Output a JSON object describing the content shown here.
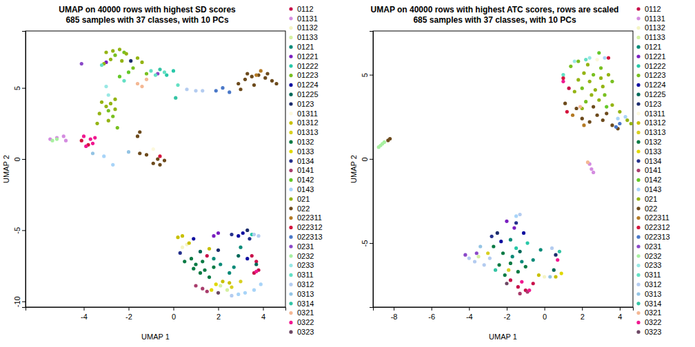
{
  "chart_data": [
    {
      "type": "scatter",
      "title": "UMAP on 40000 rows with highest SD scores",
      "subtitle": "685 samples with 37 classes, with 10 PCs",
      "x_label": "UMAP 1",
      "y_label": "UMAP 2",
      "xlim": [
        -6.6,
        5.0
      ],
      "ylim": [
        -10.4,
        9.0
      ],
      "xticks": [
        -4,
        -2,
        0,
        2,
        4
      ],
      "yticks": [
        -10,
        -5,
        0,
        5
      ],
      "legend": "right",
      "series": [
        {
          "name": "0112",
          "color": "#c8104a",
          "x": [
            3.7,
            3.8,
            3.6,
            3.5,
            1.5
          ],
          "y": [
            -7.2,
            -7.8,
            -8.0,
            -6.8,
            -6.8
          ]
        },
        {
          "name": "01131",
          "color": "#d48ce0",
          "x": [
            -5.5,
            -5.2,
            -4.8,
            -4.9
          ],
          "y": [
            1.4,
            1.5,
            1.3,
            1.6
          ]
        },
        {
          "name": "01132",
          "color": "#f4f4c4",
          "x": [
            0.4,
            0.6
          ],
          "y": [
            -6.2,
            -6.0
          ]
        },
        {
          "name": "01133",
          "color": "#d4f0a0",
          "x": [
            2.1,
            2.4
          ],
          "y": [
            -8.9,
            -9.2
          ]
        },
        {
          "name": "0121",
          "color": "#0a8a78",
          "x": [
            2.1,
            2.7,
            3.0,
            2.5,
            1.8
          ],
          "y": [
            -7.4,
            -7.6,
            -6.2,
            -8.0,
            -7.0
          ]
        },
        {
          "name": "01221",
          "color": "#7a1fc0",
          "x": [
            2.0,
            1.8,
            -3.0
          ],
          "y": [
            -5.2,
            -5.4,
            6.8
          ]
        },
        {
          "name": "01222",
          "color": "#28c8a8",
          "x": [
            0.0,
            -0.3,
            3.5
          ],
          "y": [
            6.2,
            5.9,
            -5.3
          ]
        },
        {
          "name": "01223",
          "color": "#78c020",
          "x": [
            -2.6,
            -2.2,
            -1.8,
            -2.9,
            -2.7,
            -2.5,
            -1.2
          ],
          "y": [
            7.3,
            7.5,
            6.4,
            3.4,
            3.0,
            2.2,
            6.0
          ]
        },
        {
          "name": "01224",
          "color": "#1010a0",
          "x": [
            2.9,
            3.1,
            0.9,
            3.3
          ],
          "y": [
            -5.4,
            -5.2,
            -5.6,
            -7.0
          ]
        },
        {
          "name": "01225",
          "color": "#006858",
          "x": [
            3.7,
            1.2,
            2.9
          ],
          "y": [
            -7.4,
            -6.5,
            -6.8
          ]
        },
        {
          "name": "0123",
          "color": "#1c2c6c",
          "x": [
            3.3,
            2.0,
            -1.9
          ],
          "y": [
            -5.0,
            -6.4,
            6.9
          ]
        },
        {
          "name": "01311",
          "color": "#fcf8dc",
          "x": [
            -0.9
          ],
          "y": [
            0.7
          ]
        },
        {
          "name": "01312",
          "color": "#c8c000",
          "x": [
            0.2,
            0.4,
            0.7,
            2.2,
            2.5,
            1.6
          ],
          "y": [
            -5.5,
            -5.4,
            -5.9,
            -8.6,
            -8.7,
            -6.3
          ]
        },
        {
          "name": "01313",
          "color": "#d8d020",
          "x": [
            3.0,
            2.6
          ],
          "y": [
            -8.6,
            -9.0
          ]
        },
        {
          "name": "0132",
          "color": "#0a7a44",
          "x": [
            0.8,
            1.0,
            1.2,
            1.4,
            1.6,
            0.9,
            1.8,
            0.5,
            1.3
          ],
          "y": [
            -7.0,
            -7.4,
            -8.0,
            -7.8,
            -8.3,
            -7.7,
            -7.6,
            -7.2,
            -7.2
          ]
        },
        {
          "name": "0133",
          "color": "#e0d800",
          "x": [
            1.9,
            1.7
          ],
          "y": [
            -8.8,
            -9.2
          ]
        },
        {
          "name": "0134",
          "color": "#24308c",
          "x": [
            3.4,
            2.6,
            0.3
          ],
          "y": [
            -5.6,
            -5.3,
            -6.6
          ]
        },
        {
          "name": "0141",
          "color": "#a83c6c",
          "x": [
            1.0,
            1.3,
            1.5
          ],
          "y": [
            -8.9,
            -9.1,
            -9.3
          ]
        },
        {
          "name": "0142",
          "color": "#64c828",
          "x": [
            -2.4,
            -2.0
          ],
          "y": [
            5.8,
            6.1
          ]
        },
        {
          "name": "0143",
          "color": "#a8d4f8",
          "x": [
            3.6,
            3.9,
            2.9,
            3.2,
            -2.7,
            -3.1
          ],
          "y": [
            -9.2,
            -8.8,
            -9.5,
            -9.4,
            -0.4,
            0.2
          ]
        },
        {
          "name": "021",
          "color": "#94b414",
          "x": [
            -3.0,
            -2.7,
            -2.4,
            -2.1,
            -1.6,
            -1.4,
            -2.8,
            -2.3,
            -3.1,
            -3.2,
            -3.0,
            -2.8,
            -2.6,
            -3.3,
            -2.9,
            -2.6,
            -3.4
          ],
          "y": [
            7.5,
            7.6,
            7.7,
            7.4,
            7.1,
            6.8,
            7.0,
            6.9,
            6.7,
            4.0,
            3.7,
            3.9,
            3.5,
            3.2,
            2.7,
            4.2,
            2.5
          ]
        },
        {
          "name": "022",
          "color": "#6c4a1c",
          "x": [
            2.9,
            3.2,
            3.5,
            3.8,
            4.1,
            4.4,
            4.6,
            3.6,
            3.0,
            4.2,
            3.3,
            -1.5,
            -1.6,
            -0.6,
            -0.4,
            -0.7,
            -1.2,
            -1.5,
            -0.9
          ],
          "y": [
            5.3,
            5.6,
            5.8,
            5.9,
            5.7,
            5.5,
            5.3,
            5.2,
            4.9,
            6.0,
            6.0,
            1.9,
            1.6,
            -0.4,
            -0.1,
            0.0,
            0.3,
            0.4,
            -0.3
          ]
        },
        {
          "name": "022311",
          "color": "#b47a24",
          "x": [
            3.7,
            3.9
          ],
          "y": [
            5.9,
            6.2
          ]
        },
        {
          "name": "022312",
          "color": "#d4143c",
          "x": [
            -4.1,
            -3.8,
            -0.6
          ],
          "y": [
            1.3,
            1.0,
            0.2
          ]
        },
        {
          "name": "022313",
          "color": "#4a78c8",
          "x": [
            2.2,
            1.9,
            2.5
          ],
          "y": [
            5.0,
            4.8,
            4.7
          ]
        },
        {
          "name": "0231",
          "color": "#8a48c8",
          "x": [
            -4.1,
            -0.7
          ],
          "y": [
            6.7,
            6.0
          ]
        },
        {
          "name": "0232",
          "color": "#a8f0a0",
          "x": [
            -5.4,
            -5.2
          ],
          "y": [
            1.3,
            1.4
          ]
        },
        {
          "name": "0233",
          "color": "#98e8e4",
          "x": [
            -3.0,
            -2.9
          ],
          "y": [
            5.1,
            4.5
          ]
        },
        {
          "name": "0311",
          "color": "#64e0c4",
          "x": [
            -0.8,
            -1.0,
            -0.4,
            0.2,
            -3.2,
            -2.2
          ],
          "y": [
            5.9,
            6.2,
            6.1,
            5.2,
            6.6,
            5.5
          ]
        },
        {
          "name": "0312",
          "color": "#b4ccf0",
          "x": [
            0.6,
            1.0,
            1.3,
            2.6,
            3.8,
            3.6
          ],
          "y": [
            4.9,
            4.8,
            4.8,
            -9.6,
            -5.4,
            -5.3
          ]
        },
        {
          "name": "0313",
          "color": "#94c4e4",
          "x": [
            -2.0,
            -3.6
          ],
          "y": [
            0.5,
            0.4
          ]
        },
        {
          "name": "0314",
          "color": "#34c4a4",
          "x": [
            -0.6,
            0.1
          ],
          "y": [
            6.3,
            4.3
          ]
        },
        {
          "name": "0321",
          "color": "#f4b894",
          "x": [
            -1.6,
            -1.2,
            -1.4
          ],
          "y": [
            5.3,
            5.6,
            5.1
          ]
        },
        {
          "name": "0322",
          "color": "#f01890",
          "x": [
            -4.0,
            -3.7,
            -3.5,
            -3.6,
            -3.9,
            3.7
          ],
          "y": [
            1.6,
            1.4,
            1.5,
            1.1,
            0.9,
            -7.9
          ]
        },
        {
          "name": "0323",
          "color": "#6c4864",
          "x": [
            2.0
          ],
          "y": [
            -9.4
          ]
        }
      ]
    },
    {
      "type": "scatter",
      "title": "UMAP on 40000 rows with highest ATC scores, rows are scaled",
      "subtitle": "685 samples with 37 classes, with 10 PCs",
      "x_label": "UMAP 1",
      "y_label": "UMAP 2",
      "xlim": [
        -9.1,
        4.7
      ],
      "ylim": [
        -8.8,
        7.6
      ],
      "xticks": [
        -8,
        -6,
        -4,
        -2,
        0,
        2,
        4
      ],
      "yticks": [
        -5,
        0,
        5
      ],
      "legend": "right",
      "series": [
        {
          "name": "0112",
          "color": "#c8104a",
          "x": [
            -1.4,
            -1.0,
            -0.6,
            1.3,
            -1.8
          ],
          "y": [
            -7.6,
            -7.8,
            -7.4,
            4.2,
            -7.2
          ]
        },
        {
          "name": "01131",
          "color": "#d48ce0",
          "x": [
            2.5,
            2.4,
            2.6
          ],
          "y": [
            -0.6,
            -0.3,
            -0.8
          ]
        },
        {
          "name": "01132",
          "color": "#f4f4c4",
          "x": [
            0.0
          ],
          "y": [
            -7.0
          ]
        },
        {
          "name": "01133",
          "color": "#d4f0a0",
          "x": [
            -3.5
          ],
          "y": [
            -5.8
          ]
        },
        {
          "name": "0121",
          "color": "#0a8a78",
          "x": [
            -1.7,
            -1.2,
            -0.6,
            -1.8,
            -0.2
          ],
          "y": [
            -5.8,
            -6.1,
            -6.0,
            -4.8,
            -5.4
          ]
        },
        {
          "name": "01221",
          "color": "#7a1fc0",
          "x": [
            -2.0,
            -1.6
          ],
          "y": [
            -3.7,
            -4.1
          ]
        },
        {
          "name": "01222",
          "color": "#28c8a8",
          "x": [
            -1.5,
            -0.9
          ],
          "y": [
            -5.3,
            -5.0
          ]
        },
        {
          "name": "01223",
          "color": "#78c020",
          "x": [
            1.4,
            2.0,
            2.6,
            3.2,
            3.6,
            2.2,
            1.8,
            3.0
          ],
          "y": [
            5.5,
            4.2,
            5.0,
            3.8,
            4.6,
            3.4,
            5.8,
            5.4
          ]
        },
        {
          "name": "01224",
          "color": "#1010a0",
          "x": [
            -2.3,
            -1.1
          ],
          "y": [
            -4.9,
            -4.4
          ]
        },
        {
          "name": "01225",
          "color": "#006858",
          "x": [
            -1.3,
            0.5
          ],
          "y": [
            -5.5,
            -6.6
          ]
        },
        {
          "name": "0123",
          "color": "#1c2c6c",
          "x": [
            -2.5,
            0.6
          ],
          "y": [
            -4.4,
            -5.7
          ]
        },
        {
          "name": "01311",
          "color": "#fcf8dc",
          "x": [
            2.8
          ],
          "y": [
            5.9
          ]
        },
        {
          "name": "01312",
          "color": "#c8c000",
          "x": [
            -0.3,
            0.6
          ],
          "y": [
            -6.9,
            -7.0
          ]
        },
        {
          "name": "01313",
          "color": "#d8d020",
          "x": [
            -3.0,
            -1.9
          ],
          "y": [
            -5.6,
            -6.6
          ]
        },
        {
          "name": "0132",
          "color": "#0a7a44",
          "x": [
            -2.2,
            -1.8,
            -1.4,
            -2.4,
            -1.0,
            -2.7,
            -2.1
          ],
          "y": [
            -5.6,
            -6.2,
            -6.7,
            -6.3,
            -6.4,
            -5.2,
            -6.9
          ]
        },
        {
          "name": "0133",
          "color": "#e0d800",
          "x": [
            0.9
          ],
          "y": [
            -6.8
          ]
        },
        {
          "name": "0134",
          "color": "#24308c",
          "x": [
            -2.8,
            -1.5
          ],
          "y": [
            -4.6,
            -3.8
          ]
        },
        {
          "name": "0141",
          "color": "#a83c6c",
          "x": [
            -1.3,
            -0.9
          ],
          "y": [
            -8.0,
            -7.9
          ]
        },
        {
          "name": "0142",
          "color": "#64c828",
          "x": [
            2.9,
            3.3
          ],
          "y": [
            6.3,
            3.1
          ]
        },
        {
          "name": "0143",
          "color": "#a8d4f8",
          "x": [
            3.9,
            4.3,
            -1.5,
            3.2
          ],
          "y": [
            2.4,
            2.5,
            -3.4,
            6.0
          ]
        },
        {
          "name": "021",
          "color": "#94b414",
          "x": [
            1.8,
            2.1,
            2.4,
            2.7,
            3.0,
            3.4,
            3.1,
            2.3,
            2.9,
            3.6,
            4.0,
            4.4,
            4.6,
            1.6,
            2.5,
            2.0
          ],
          "y": [
            4.7,
            5.1,
            4.6,
            4.1,
            4.8,
            5.0,
            4.3,
            5.6,
            3.5,
            3.2,
            2.8,
            2.3,
            2.1,
            4.0,
            3.8,
            3.0
          ]
        },
        {
          "name": "022",
          "color": "#6c4a1c",
          "x": [
            1.7,
            2.0,
            2.4,
            2.8,
            3.1,
            3.6,
            3.9,
            2.6,
            3.3,
            -8.3,
            -8.2,
            1.1
          ],
          "y": [
            3.0,
            2.4,
            2.2,
            2.6,
            2.3,
            2.0,
            1.8,
            3.1,
            2.7,
            1.1,
            1.2,
            3.3
          ]
        },
        {
          "name": "022311",
          "color": "#b47a24",
          "x": [
            1.5,
            2.1
          ],
          "y": [
            2.6,
            2.0
          ]
        },
        {
          "name": "022312",
          "color": "#d4143c",
          "x": [
            1.0,
            1.2,
            3.4
          ],
          "y": [
            4.8,
            2.8,
            6.0
          ]
        },
        {
          "name": "022313",
          "color": "#4a78c8",
          "x": [
            4.0,
            3.8
          ],
          "y": [
            2.1,
            1.9
          ]
        },
        {
          "name": "0231",
          "color": "#8a48c8",
          "x": [
            -3.6,
            -4.2
          ],
          "y": [
            -5.6,
            -5.7
          ]
        },
        {
          "name": "0232",
          "color": "#a8f0a0",
          "x": [
            -8.8,
            -8.7,
            -8.6,
            -8.5
          ],
          "y": [
            0.7,
            0.8,
            0.9,
            1.0
          ]
        },
        {
          "name": "0233",
          "color": "#98e8e4",
          "x": [
            1.6,
            2.4
          ],
          "y": [
            5.8,
            6.0
          ]
        },
        {
          "name": "0311",
          "color": "#64e0c4",
          "x": [
            2.2,
            1.0
          ],
          "y": [
            5.9,
            5.0
          ]
        },
        {
          "name": "0312",
          "color": "#b4ccf0",
          "x": [
            -4.0,
            -3.7,
            -3.2,
            -2.9,
            0.4,
            -1.3
          ],
          "y": [
            -5.9,
            -6.1,
            -6.3,
            -5.9,
            -5.3,
            -3.3
          ]
        },
        {
          "name": "0313",
          "color": "#94c4e4",
          "x": [
            -3.4,
            0.3
          ],
          "y": [
            -5.2,
            -7.0
          ]
        },
        {
          "name": "0314",
          "color": "#34c4a4",
          "x": [
            -2.6,
            0.8
          ],
          "y": [
            -6.6,
            -5.5
          ]
        },
        {
          "name": "0321",
          "color": "#f4b894",
          "x": [
            1.9,
            2.3
          ],
          "y": [
            3.1,
            -0.2
          ]
        },
        {
          "name": "0322",
          "color": "#f01890",
          "x": [
            1.0,
            -0.8,
            -1.2,
            0.7
          ],
          "y": [
            4.6,
            -7.8,
            -7.3,
            -6.0
          ]
        },
        {
          "name": "0323",
          "color": "#6c4864",
          "x": [
            -2.0
          ],
          "y": [
            -7.4
          ]
        }
      ]
    }
  ]
}
